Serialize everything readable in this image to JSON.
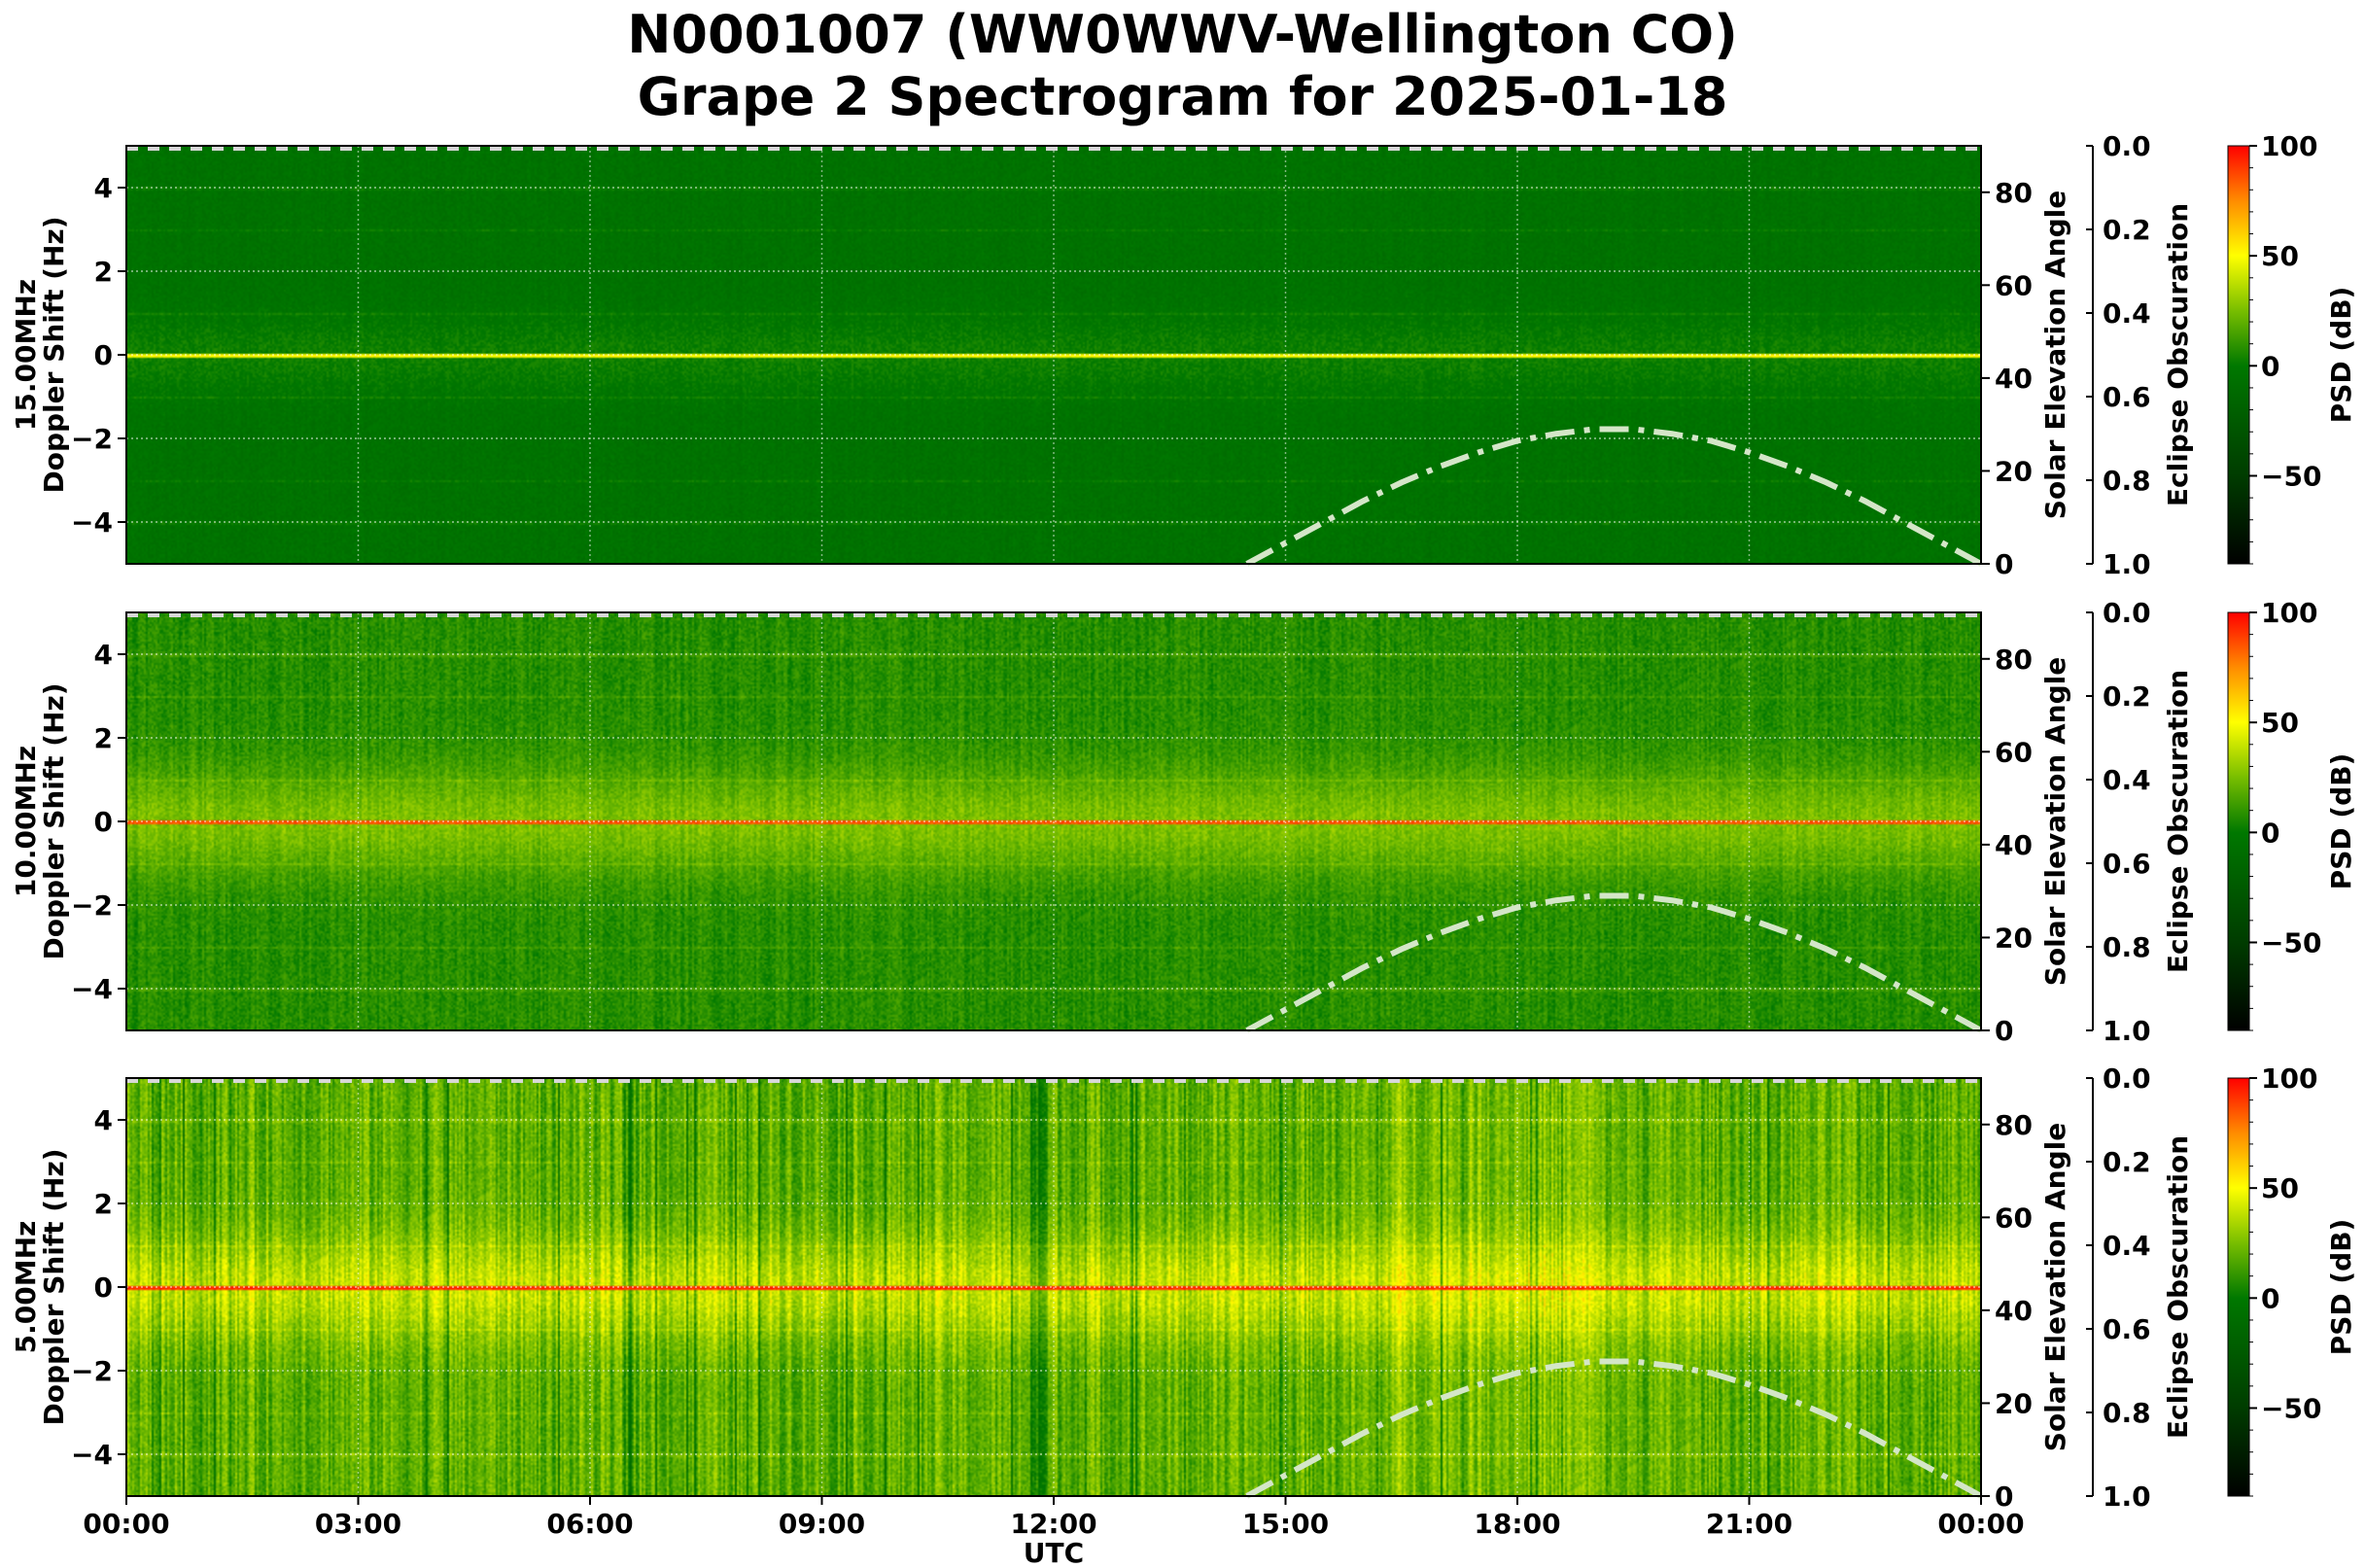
{
  "title_line1": "N0001007 (WW0WWV-Wellington CO)",
  "title_line2": "Grape 2 Spectrogram for 2025-01-18",
  "chart_data": {
    "type": "heatmap",
    "x_label": "UTC",
    "x_tick_labels": [
      "00:00",
      "03:00",
      "06:00",
      "09:00",
      "12:00",
      "15:00",
      "18:00",
      "21:00",
      "00:00"
    ],
    "x_range_hours": [
      0,
      24
    ],
    "grid": true,
    "panels": [
      {
        "frequency_label": "15.00MHz",
        "ylabel": "Doppler Shift (Hz)",
        "ylim": [
          -5,
          5
        ],
        "y_ticks": [
          -4,
          -2,
          0,
          2,
          4
        ],
        "carrier_psd_db": 50,
        "background_psd_db": -5
      },
      {
        "frequency_label": "10.00MHz",
        "ylabel": "Doppler Shift (Hz)",
        "ylim": [
          -5,
          5
        ],
        "y_ticks": [
          -4,
          -2,
          0,
          2,
          4
        ],
        "carrier_psd_db": 85,
        "background_psd_db": 8
      },
      {
        "frequency_label": "5.00MHz",
        "ylabel": "Doppler Shift (Hz)",
        "ylim": [
          -5,
          5
        ],
        "y_ticks": [
          -4,
          -2,
          0,
          2,
          4
        ],
        "carrier_psd_db": 92,
        "background_psd_db": 20
      }
    ],
    "solar_elevation": {
      "label": "Solar Elevation Angle",
      "ylim": [
        0,
        90
      ],
      "ticks": [
        0,
        20,
        40,
        60,
        80
      ],
      "color": "#d4e6c8",
      "style": "dashdot",
      "points": [
        [
          14.5,
          0
        ],
        [
          15,
          4.5
        ],
        [
          15.5,
          9
        ],
        [
          16,
          13.5
        ],
        [
          16.5,
          17.5
        ],
        [
          17,
          21
        ],
        [
          17.5,
          24
        ],
        [
          18,
          26.5
        ],
        [
          18.5,
          28
        ],
        [
          19,
          29
        ],
        [
          19.5,
          29
        ],
        [
          20,
          28
        ],
        [
          20.5,
          26.5
        ],
        [
          21,
          24
        ],
        [
          21.5,
          21
        ],
        [
          22,
          17.5
        ],
        [
          22.5,
          13.5
        ],
        [
          23,
          9
        ],
        [
          23.5,
          4.5
        ],
        [
          24,
          0
        ]
      ]
    },
    "eclipse_obscuration": {
      "label": "Eclipse Obscuration",
      "ylim": [
        1.0,
        0.0
      ],
      "tick_labels": [
        "0.0",
        "0.2",
        "0.4",
        "0.6",
        "0.8",
        "1.0"
      ]
    },
    "colorbar": {
      "label": "PSD (dB)",
      "range": [
        -90,
        100
      ],
      "ticks": [
        100,
        50,
        0,
        -50
      ],
      "tick_labels": [
        "100",
        "50",
        "0",
        "−50"
      ],
      "colormap_stops": [
        [
          -90,
          "#000000"
        ],
        [
          -50,
          "#003c00"
        ],
        [
          0,
          "#007800"
        ],
        [
          25,
          "#78be00"
        ],
        [
          50,
          "#ffff00"
        ],
        [
          75,
          "#ff8c00"
        ],
        [
          100,
          "#ff0000"
        ]
      ]
    }
  }
}
